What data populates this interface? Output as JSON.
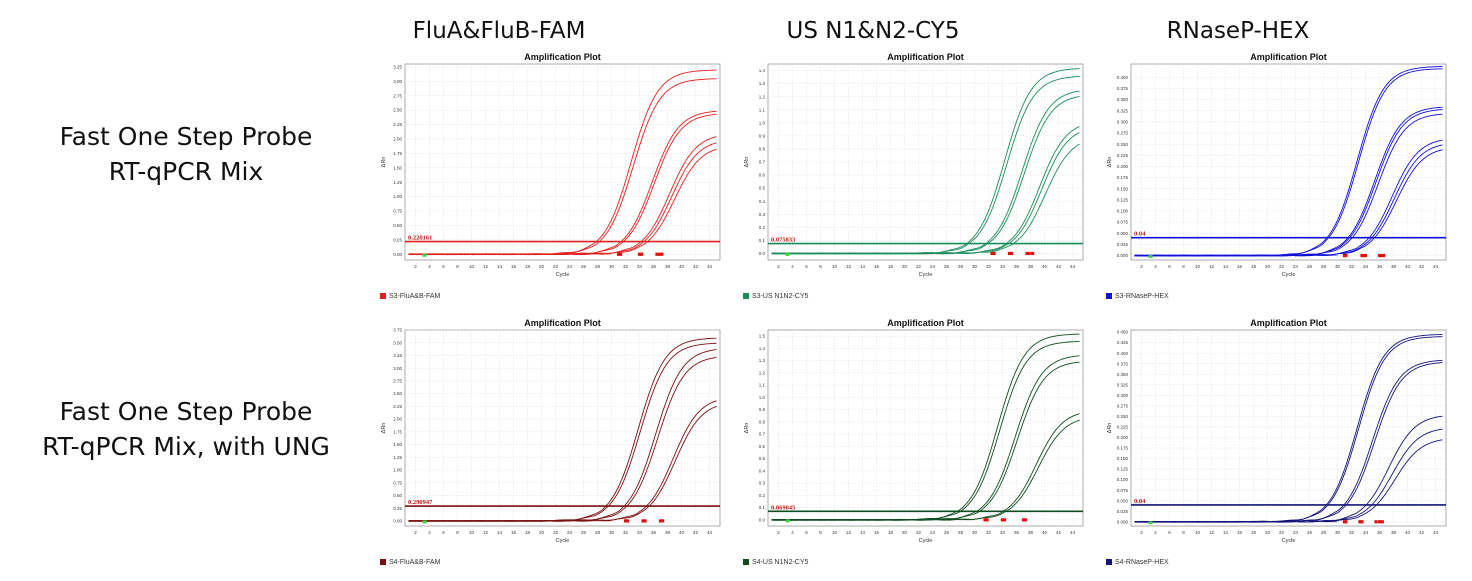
{
  "columns": [
    "FluA&FluB-FAM",
    "US N1&N2-CY5",
    "RNaseP-HEX"
  ],
  "rows": [
    {
      "lines": [
        "Fast One Step Probe",
        "RT-qPCR Mix"
      ]
    },
    {
      "lines": [
        "Fast One Step Probe",
        "RT-qPCR Mix, with UNG"
      ]
    }
  ],
  "chart_data": [
    {
      "type": "line",
      "title": "Amplification Plot",
      "xlabel": "Cycle",
      "ylabel": "ΔRn",
      "color": "#e32020",
      "ylim": [
        -0.1,
        3.3
      ],
      "yticks": [
        0,
        0.25,
        0.5,
        0.75,
        1.0,
        1.25,
        1.5,
        1.75,
        2.0,
        2.25,
        2.5,
        2.75,
        3.0,
        3.25
      ],
      "ytick_labels": [
        "0.00",
        "0.25",
        "0.50",
        "0.75",
        "1.00",
        "1.25",
        "1.50",
        "1.75",
        "2.00",
        "2.25",
        "2.50",
        "2.75",
        "3.00",
        "3.25"
      ],
      "threshold": 0.220161,
      "threshold_label": "0.220161",
      "legend": "S3-FluA&B-FAM",
      "series": [
        {
          "ct": 31,
          "max": 3.2
        },
        {
          "ct": 31.3,
          "max": 3.05
        },
        {
          "ct": 34,
          "max": 2.5
        },
        {
          "ct": 34.3,
          "max": 2.45
        },
        {
          "ct": 36.5,
          "max": 2.1
        },
        {
          "ct": 36.8,
          "max": 2.0
        },
        {
          "ct": 37.2,
          "max": 1.9
        }
      ]
    },
    {
      "type": "line",
      "title": "Amplification Plot",
      "xlabel": "Cycle",
      "ylabel": "ΔRn",
      "color": "#1a8c5a",
      "ylim": [
        -0.05,
        1.45
      ],
      "yticks": [
        0,
        0.1,
        0.2,
        0.3,
        0.4,
        0.5,
        0.6,
        0.7,
        0.8,
        0.9,
        1.0,
        1.1,
        1.2,
        1.3,
        1.4
      ],
      "ytick_labels": [
        "0.0",
        "0.1",
        "0.2",
        "0.3",
        "0.4",
        "0.5",
        "0.6",
        "0.7",
        "0.8",
        "0.9",
        "1.0",
        "1.1",
        "1.2",
        "1.3",
        "1.4"
      ],
      "threshold": 0.075833,
      "threshold_label": "0.075833",
      "legend": "S3-US N1N2-CY5",
      "series": [
        {
          "ct": 32.5,
          "max": 1.42
        },
        {
          "ct": 32.8,
          "max": 1.36
        },
        {
          "ct": 35,
          "max": 1.26
        },
        {
          "ct": 35.3,
          "max": 1.22
        },
        {
          "ct": 37.5,
          "max": 1.02
        },
        {
          "ct": 37.8,
          "max": 0.98
        },
        {
          "ct": 38.3,
          "max": 0.9
        }
      ]
    },
    {
      "type": "line",
      "title": "Amplification Plot",
      "xlabel": "Cycle",
      "ylabel": "ΔRn",
      "color": "#1010d8",
      "ylim": [
        -0.01,
        0.43
      ],
      "yticks": [
        0,
        0.025,
        0.05,
        0.075,
        0.1,
        0.125,
        0.15,
        0.175,
        0.2,
        0.225,
        0.25,
        0.275,
        0.3,
        0.325,
        0.35,
        0.375,
        0.4
      ],
      "ytick_labels": [
        "0.000",
        "0.025",
        "0.050",
        "0.075",
        "0.100",
        "0.125",
        "0.150",
        "0.175",
        "0.200",
        "0.225",
        "0.250",
        "0.275",
        "0.300",
        "0.325",
        "0.350",
        "0.375",
        "0.400"
      ],
      "threshold": 0.04,
      "threshold_label": "0.04",
      "legend": "S3-RNaseP-HEX",
      "series": [
        {
          "ct": 31,
          "max": 0.425
        },
        {
          "ct": 31.2,
          "max": 0.42
        },
        {
          "ct": 33.5,
          "max": 0.335
        },
        {
          "ct": 33.7,
          "max": 0.33
        },
        {
          "ct": 34,
          "max": 0.32
        },
        {
          "ct": 36,
          "max": 0.265
        },
        {
          "ct": 36.3,
          "max": 0.255
        },
        {
          "ct": 36.6,
          "max": 0.245
        }
      ]
    },
    {
      "type": "line",
      "title": "Amplification Plot",
      "xlabel": "Cycle",
      "ylabel": "ΔRn",
      "color": "#7a1010",
      "ylim": [
        -0.1,
        3.75
      ],
      "yticks": [
        0,
        0.25,
        0.5,
        0.75,
        1.0,
        1.25,
        1.5,
        1.75,
        2.0,
        2.25,
        2.5,
        2.75,
        3.0,
        3.25,
        3.5,
        3.75
      ],
      "ytick_labels": [
        "0.00",
        "0.25",
        "0.50",
        "0.75",
        "1.00",
        "1.25",
        "1.50",
        "1.75",
        "2.00",
        "2.25",
        "2.50",
        "2.75",
        "3.00",
        "3.25",
        "3.50",
        "3.75"
      ],
      "threshold": 0.290947,
      "threshold_label": "0.290947",
      "legend": "S4-FluA&B-FAM",
      "series": [
        {
          "ct": 32,
          "max": 3.6
        },
        {
          "ct": 32.3,
          "max": 3.5
        },
        {
          "ct": 34.5,
          "max": 3.4
        },
        {
          "ct": 34.8,
          "max": 3.25
        },
        {
          "ct": 37,
          "max": 2.45
        },
        {
          "ct": 37.3,
          "max": 2.35
        }
      ]
    },
    {
      "type": "line",
      "title": "Amplification Plot",
      "xlabel": "Cycle",
      "ylabel": "ΔRn",
      "color": "#0f4d1f",
      "ylim": [
        -0.05,
        1.55
      ],
      "yticks": [
        0,
        0.1,
        0.2,
        0.3,
        0.4,
        0.5,
        0.6,
        0.7,
        0.8,
        0.9,
        1.0,
        1.1,
        1.2,
        1.3,
        1.4,
        1.5
      ],
      "ytick_labels": [
        "0.0",
        "0.1",
        "0.2",
        "0.3",
        "0.4",
        "0.5",
        "0.6",
        "0.7",
        "0.8",
        "0.9",
        "1.0",
        "1.1",
        "1.2",
        "1.3",
        "1.4",
        "1.5"
      ],
      "threshold": 0.069845,
      "threshold_label": "0.069845",
      "legend": "S4-US N1N2-CY5",
      "series": [
        {
          "ct": 31.5,
          "max": 1.52
        },
        {
          "ct": 31.8,
          "max": 1.46
        },
        {
          "ct": 34,
          "max": 1.35
        },
        {
          "ct": 34.3,
          "max": 1.3
        },
        {
          "ct": 37,
          "max": 0.9
        },
        {
          "ct": 37.3,
          "max": 0.85
        }
      ]
    },
    {
      "type": "line",
      "title": "Amplification Plot",
      "xlabel": "Cycle",
      "ylabel": "ΔRn",
      "color": "#14147a",
      "ylim": [
        -0.01,
        0.455
      ],
      "yticks": [
        0,
        0.025,
        0.05,
        0.075,
        0.1,
        0.125,
        0.15,
        0.175,
        0.2,
        0.225,
        0.25,
        0.275,
        0.3,
        0.325,
        0.35,
        0.375,
        0.4,
        0.425,
        0.45
      ],
      "ytick_labels": [
        "0.000",
        "0.025",
        "0.050",
        "0.075",
        "0.100",
        "0.125",
        "0.150",
        "0.175",
        "0.200",
        "0.225",
        "0.250",
        "0.275",
        "0.300",
        "0.325",
        "0.350",
        "0.375",
        "0.400",
        "0.425",
        "0.450"
      ],
      "threshold": 0.04,
      "threshold_label": "0.04",
      "legend": "S4-RNaseP-HEX",
      "series": [
        {
          "ct": 31,
          "max": 0.445
        },
        {
          "ct": 31.2,
          "max": 0.44
        },
        {
          "ct": 33.2,
          "max": 0.385
        },
        {
          "ct": 33.5,
          "max": 0.38
        },
        {
          "ct": 35.5,
          "max": 0.255
        },
        {
          "ct": 36,
          "max": 0.225
        },
        {
          "ct": 36.4,
          "max": 0.2
        }
      ]
    }
  ]
}
